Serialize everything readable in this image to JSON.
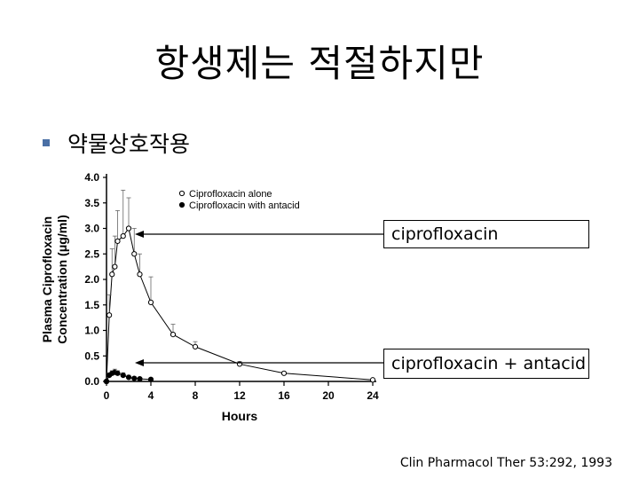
{
  "slide": {
    "title": "항생제는 적절하지만",
    "bullet": "약물상호작용",
    "citation": "Clin Pharmacol Ther 53:292, 1993"
  },
  "callouts": {
    "ciprofloxacin": "ciprofloxacin",
    "with_antacid": "ciprofloxacin + antacid"
  },
  "colors": {
    "accent": "#4a6fa5",
    "ink": "#000000"
  },
  "chart_data": {
    "type": "line",
    "xlabel": "Hours",
    "ylabel_line1": "Plasma Ciprofloxacin",
    "ylabel_line2": "Concentration (μg/ml)",
    "xlim": [
      0,
      24
    ],
    "ylim": [
      0,
      4.0
    ],
    "x_ticks": [
      0,
      4,
      8,
      12,
      16,
      20,
      24
    ],
    "y_ticks": [
      "0.0",
      "0.5",
      "1.0",
      "1.5",
      "2.0",
      "2.5",
      "3.0",
      "3.5",
      "4.0"
    ],
    "legend_position": "top-center",
    "series": [
      {
        "name": "Ciprofloxacin alone",
        "marker": "open-circle",
        "x": [
          0,
          0.25,
          0.5,
          0.75,
          1.0,
          1.5,
          2.0,
          2.5,
          3.0,
          4.0,
          6.0,
          8.0,
          12.0,
          16.0,
          24.0
        ],
        "y": [
          0.0,
          1.3,
          2.1,
          2.25,
          2.75,
          2.85,
          3.0,
          2.5,
          2.1,
          1.55,
          0.92,
          0.68,
          0.34,
          0.16,
          0.03
        ],
        "err": [
          0,
          0.4,
          0.5,
          0.6,
          0.6,
          0.9,
          0.6,
          0.5,
          0.4,
          0.5,
          0.2,
          0.1,
          0.05,
          0.03,
          0.02
        ]
      },
      {
        "name": "Ciprofloxacin with antacid",
        "marker": "filled-circle",
        "x": [
          0,
          0.25,
          0.5,
          0.75,
          1.0,
          1.5,
          2.0,
          2.5,
          3.0,
          4.0
        ],
        "y": [
          0.0,
          0.12,
          0.16,
          0.18,
          0.16,
          0.12,
          0.08,
          0.06,
          0.05,
          0.04
        ],
        "err": [
          0,
          0.05,
          0.05,
          0.06,
          0.05,
          0.05,
          0.04,
          0.03,
          0.02,
          0.02
        ]
      }
    ]
  }
}
